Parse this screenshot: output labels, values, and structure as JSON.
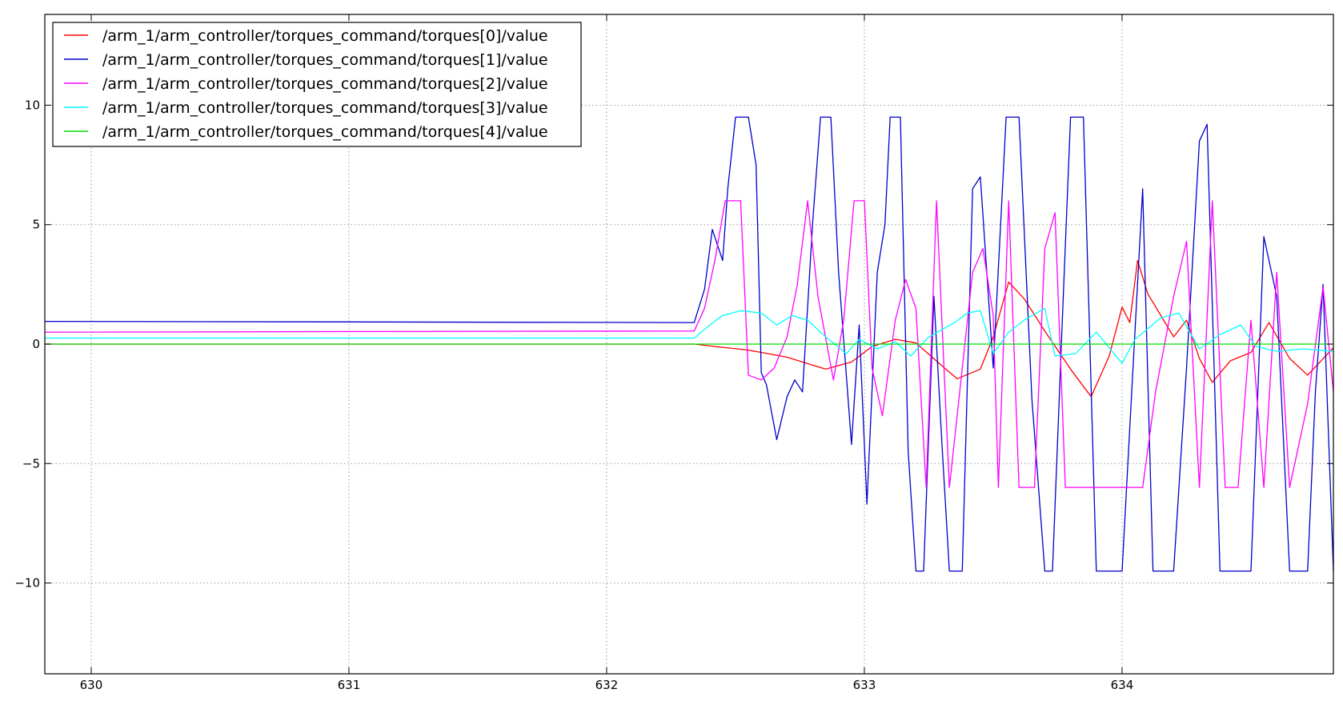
{
  "chart_data": {
    "type": "line",
    "title": "",
    "xlabel": "",
    "ylabel": "",
    "xlim": [
      629.82,
      634.82
    ],
    "ylim": [
      -13.8,
      13.8
    ],
    "x_ticks": [
      630,
      631,
      632,
      633,
      634
    ],
    "x_tick_labels": [
      "630",
      "631",
      "632",
      "633",
      "634"
    ],
    "y_ticks": [
      10,
      5,
      0,
      -5,
      -10
    ],
    "y_tick_labels": [
      "10",
      "5",
      "0",
      "−5",
      "−10"
    ],
    "grid": true,
    "legend_position": "upper-left",
    "series": [
      {
        "name": "/arm_1/arm_controller/torques_command/torques[0]/value",
        "color": "#ff0000",
        "points": [
          [
            629.82,
            0.0
          ],
          [
            632.34,
            0.0
          ],
          [
            632.42,
            -0.1
          ],
          [
            632.55,
            -0.25
          ],
          [
            632.7,
            -0.55
          ],
          [
            632.85,
            -1.05
          ],
          [
            632.95,
            -0.75
          ],
          [
            633.03,
            -0.1
          ],
          [
            633.12,
            0.2
          ],
          [
            633.2,
            0.05
          ],
          [
            633.3,
            -0.9
          ],
          [
            633.36,
            -1.45
          ],
          [
            633.45,
            -1.05
          ],
          [
            633.5,
            0.3
          ],
          [
            633.56,
            2.6
          ],
          [
            633.62,
            1.9
          ],
          [
            633.7,
            0.55
          ],
          [
            633.8,
            -1.05
          ],
          [
            633.88,
            -2.2
          ],
          [
            633.95,
            -0.5
          ],
          [
            634.0,
            1.55
          ],
          [
            634.03,
            0.9
          ],
          [
            634.06,
            3.5
          ],
          [
            634.1,
            2.1
          ],
          [
            634.2,
            0.3
          ],
          [
            634.25,
            1.0
          ],
          [
            634.3,
            -0.6
          ],
          [
            634.35,
            -1.6
          ],
          [
            634.42,
            -0.7
          ],
          [
            634.5,
            -0.35
          ],
          [
            634.57,
            0.9
          ],
          [
            634.65,
            -0.6
          ],
          [
            634.72,
            -1.3
          ],
          [
            634.82,
            -0.15
          ]
        ]
      },
      {
        "name": "/arm_1/arm_controller/torques_command/torques[1]/value",
        "color": "#0000cc",
        "points": [
          [
            629.82,
            0.95
          ],
          [
            632.34,
            0.9
          ],
          [
            632.38,
            2.3
          ],
          [
            632.41,
            4.8
          ],
          [
            632.45,
            3.5
          ],
          [
            632.47,
            6.5
          ],
          [
            632.5,
            9.5
          ],
          [
            632.55,
            9.5
          ],
          [
            632.58,
            7.5
          ],
          [
            632.6,
            -1.2
          ],
          [
            632.62,
            -1.7
          ],
          [
            632.66,
            -4.0
          ],
          [
            632.7,
            -2.2
          ],
          [
            632.73,
            -1.5
          ],
          [
            632.76,
            -2.0
          ],
          [
            632.8,
            5.2
          ],
          [
            632.83,
            9.5
          ],
          [
            632.87,
            9.5
          ],
          [
            632.9,
            3.0
          ],
          [
            632.95,
            -4.2
          ],
          [
            632.98,
            0.8
          ],
          [
            633.01,
            -6.7
          ],
          [
            633.05,
            3.0
          ],
          [
            633.08,
            5.0
          ],
          [
            633.1,
            9.5
          ],
          [
            633.14,
            9.5
          ],
          [
            633.17,
            -4.5
          ],
          [
            633.2,
            -9.5
          ],
          [
            633.23,
            -9.5
          ],
          [
            633.27,
            2.0
          ],
          [
            633.3,
            -4.0
          ],
          [
            633.33,
            -9.5
          ],
          [
            633.38,
            -9.5
          ],
          [
            633.42,
            6.5
          ],
          [
            633.45,
            7.0
          ],
          [
            633.5,
            -1.0
          ],
          [
            633.55,
            9.5
          ],
          [
            633.6,
            9.5
          ],
          [
            633.65,
            -2.3
          ],
          [
            633.7,
            -9.5
          ],
          [
            633.73,
            -9.5
          ],
          [
            633.77,
            1.5
          ],
          [
            633.8,
            9.5
          ],
          [
            633.85,
            9.5
          ],
          [
            633.9,
            -9.5
          ],
          [
            634.0,
            -9.5
          ],
          [
            634.03,
            -3.5
          ],
          [
            634.08,
            6.5
          ],
          [
            634.12,
            -9.5
          ],
          [
            634.2,
            -9.5
          ],
          [
            634.25,
            -1.0
          ],
          [
            634.3,
            8.5
          ],
          [
            634.33,
            9.2
          ],
          [
            634.38,
            -9.5
          ],
          [
            634.5,
            -9.5
          ],
          [
            634.55,
            4.5
          ],
          [
            634.6,
            2.0
          ],
          [
            634.65,
            -9.5
          ],
          [
            634.72,
            -9.5
          ],
          [
            634.75,
            -2.0
          ],
          [
            634.78,
            2.5
          ],
          [
            634.82,
            -9.5
          ]
        ]
      },
      {
        "name": "/arm_1/arm_controller/torques_command/torques[2]/value",
        "color": "#ff00ff",
        "points": [
          [
            629.82,
            0.5
          ],
          [
            632.34,
            0.55
          ],
          [
            632.38,
            1.5
          ],
          [
            632.42,
            3.5
          ],
          [
            632.46,
            6.0
          ],
          [
            632.52,
            6.0
          ],
          [
            632.55,
            -1.3
          ],
          [
            632.6,
            -1.5
          ],
          [
            632.65,
            -1.0
          ],
          [
            632.7,
            0.3
          ],
          [
            632.74,
            2.5
          ],
          [
            632.78,
            6.0
          ],
          [
            632.82,
            2.0
          ],
          [
            632.88,
            -1.5
          ],
          [
            632.92,
            1.0
          ],
          [
            632.96,
            6.0
          ],
          [
            633.0,
            6.0
          ],
          [
            633.03,
            -1.0
          ],
          [
            633.07,
            -3.0
          ],
          [
            633.12,
            1.0
          ],
          [
            633.16,
            2.7
          ],
          [
            633.2,
            1.5
          ],
          [
            633.24,
            -6.0
          ],
          [
            633.28,
            6.0
          ],
          [
            633.33,
            -6.0
          ],
          [
            633.37,
            -2.0
          ],
          [
            633.42,
            3.0
          ],
          [
            633.46,
            4.0
          ],
          [
            633.5,
            1.2
          ],
          [
            633.52,
            -6.0
          ],
          [
            633.56,
            6.0
          ],
          [
            633.6,
            -6.0
          ],
          [
            633.66,
            -6.0
          ],
          [
            633.7,
            4.0
          ],
          [
            633.74,
            5.5
          ],
          [
            633.78,
            -6.0
          ],
          [
            633.85,
            -6.0
          ],
          [
            634.0,
            -6.0
          ],
          [
            634.08,
            -6.0
          ],
          [
            634.13,
            -2.0
          ],
          [
            634.2,
            2.0
          ],
          [
            634.25,
            4.3
          ],
          [
            634.3,
            -6.0
          ],
          [
            634.35,
            6.0
          ],
          [
            634.4,
            -6.0
          ],
          [
            634.45,
            -6.0
          ],
          [
            634.5,
            1.0
          ],
          [
            634.55,
            -6.0
          ],
          [
            634.6,
            3.0
          ],
          [
            634.65,
            -6.0
          ],
          [
            634.72,
            -2.5
          ],
          [
            634.78,
            2.4
          ],
          [
            634.82,
            -2.0
          ]
        ]
      },
      {
        "name": "/arm_1/arm_controller/torques_command/torques[3]/value",
        "color": "#00ffff",
        "points": [
          [
            629.82,
            0.25
          ],
          [
            632.34,
            0.25
          ],
          [
            632.4,
            0.8
          ],
          [
            632.45,
            1.2
          ],
          [
            632.52,
            1.4
          ],
          [
            632.6,
            1.3
          ],
          [
            632.66,
            0.8
          ],
          [
            632.72,
            1.2
          ],
          [
            632.78,
            1.0
          ],
          [
            632.85,
            0.3
          ],
          [
            632.93,
            -0.4
          ],
          [
            632.98,
            0.2
          ],
          [
            633.05,
            -0.2
          ],
          [
            633.12,
            0.1
          ],
          [
            633.18,
            -0.5
          ],
          [
            633.25,
            0.3
          ],
          [
            633.35,
            0.9
          ],
          [
            633.4,
            1.3
          ],
          [
            633.45,
            1.4
          ],
          [
            633.5,
            -0.4
          ],
          [
            633.56,
            0.5
          ],
          [
            633.62,
            1.0
          ],
          [
            633.7,
            1.5
          ],
          [
            633.74,
            -0.5
          ],
          [
            633.82,
            -0.4
          ],
          [
            633.9,
            0.5
          ],
          [
            634.0,
            -0.8
          ],
          [
            634.05,
            0.2
          ],
          [
            634.15,
            1.1
          ],
          [
            634.22,
            1.3
          ],
          [
            634.3,
            -0.2
          ],
          [
            634.38,
            0.4
          ],
          [
            634.46,
            0.8
          ],
          [
            634.52,
            -0.1
          ],
          [
            634.6,
            -0.3
          ],
          [
            634.7,
            -0.2
          ],
          [
            634.82,
            -0.3
          ]
        ]
      },
      {
        "name": "/arm_1/arm_controller/torques_command/torques[4]/value",
        "color": "#00dd00",
        "points": [
          [
            629.82,
            0.0
          ],
          [
            634.82,
            0.0
          ]
        ]
      }
    ]
  }
}
